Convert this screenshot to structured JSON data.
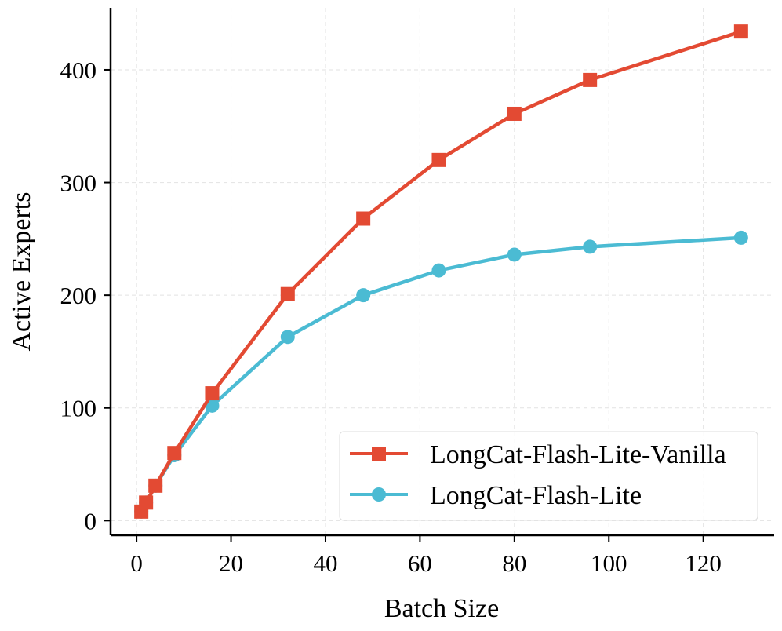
{
  "chart_data": {
    "type": "line",
    "title": "",
    "xlabel": "Batch Size",
    "ylabel": "Active Experts",
    "xlim": [
      -5.5,
      135
    ],
    "ylim": [
      -13,
      455
    ],
    "xticks": [
      0,
      20,
      40,
      60,
      80,
      100,
      120
    ],
    "yticks": [
      0,
      100,
      200,
      300,
      400
    ],
    "xtick_labels": [
      "0",
      "20",
      "40",
      "60",
      "80",
      "100",
      "120"
    ],
    "ytick_labels": [
      "0",
      "100",
      "200",
      "300",
      "400"
    ],
    "grid": true,
    "legend_position": "bottom-right",
    "x": [
      1,
      2,
      4,
      8,
      16,
      32,
      48,
      64,
      80,
      96,
      128
    ],
    "series": [
      {
        "name": "LongCat-Flash-Lite-Vanilla",
        "color": "#e34a33",
        "marker": "square",
        "values": [
          8,
          16,
          31,
          60,
          113,
          201,
          268,
          320,
          361,
          391,
          434
        ]
      },
      {
        "name": "LongCat-Flash-Lite",
        "color": "#4bbbd3",
        "marker": "circle",
        "values": [
          8,
          16,
          31,
          58,
          102,
          163,
          200,
          222,
          236,
          243,
          251
        ]
      }
    ]
  }
}
